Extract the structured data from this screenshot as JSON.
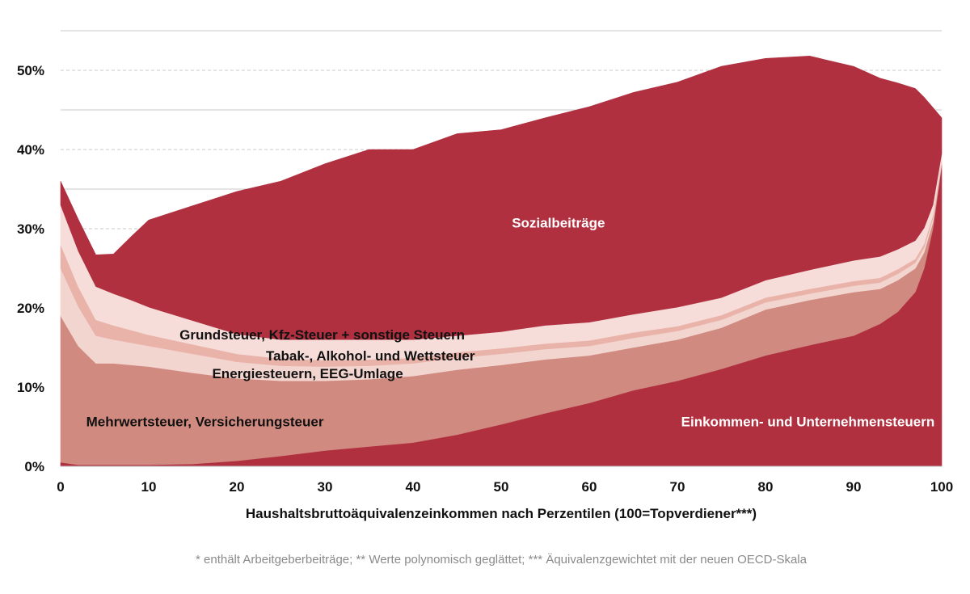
{
  "chart_data": {
    "type": "area",
    "stacked": true,
    "title": "",
    "xlabel": "Haushaltsbruttoäquivalenzeinkommen nach Perzentilen (100=Topverdiener***)",
    "ylabel": "",
    "xlim": [
      0,
      100
    ],
    "ylim": [
      0,
      50
    ],
    "x_ticks": [
      "0",
      "10",
      "20",
      "30",
      "40",
      "50",
      "60",
      "70",
      "80",
      "90",
      "100"
    ],
    "y_ticks": [
      "0%",
      "10%",
      "20%",
      "30%",
      "40%",
      "50%"
    ],
    "grid": true,
    "legend": "none (labels inside areas)",
    "footnote": "* enthält Arbeitgeberbeiträge; ** Werte polynomisch geglättet; *** Äquivalenzgewichtet mit der neuen OECD-Skala",
    "x": [
      0,
      2,
      4,
      6,
      8,
      10,
      15,
      20,
      25,
      30,
      35,
      40,
      45,
      50,
      55,
      60,
      65,
      70,
      75,
      80,
      85,
      90,
      93,
      95,
      97,
      98,
      99,
      100
    ],
    "series": [
      {
        "name": "Einkommen- und Unternehmensteuern",
        "color": "#B03040",
        "values": [
          0.5,
          0.2,
          0.2,
          0.2,
          0.2,
          0.2,
          0.3,
          0.7,
          1.3,
          2.0,
          2.5,
          3.0,
          4.0,
          5.3,
          6.7,
          8.0,
          9.6,
          10.8,
          12.3,
          14.0,
          15.3,
          16.5,
          18.0,
          19.5,
          22.0,
          25.0,
          30.0,
          38.0
        ]
      },
      {
        "name": "Mehrwertsteuer, Versicherungsteuer",
        "color": "#D08A80",
        "values": [
          18.5,
          15.0,
          12.8,
          12.8,
          12.6,
          12.4,
          11.5,
          10.4,
          9.5,
          8.8,
          8.5,
          8.4,
          8.2,
          7.5,
          6.8,
          6.0,
          5.4,
          5.2,
          5.2,
          5.8,
          5.7,
          5.5,
          4.4,
          4.0,
          3.0,
          2.0,
          0.8,
          0.3
        ]
      },
      {
        "name": "Energiesteuern, EEG-Umlage",
        "color": "#F3D5D0",
        "values": [
          6.0,
          5.0,
          3.5,
          3.0,
          2.8,
          2.6,
          2.4,
          2.1,
          1.9,
          1.8,
          1.7,
          1.6,
          1.5,
          1.4,
          1.3,
          1.2,
          1.2,
          1.1,
          1.0,
          0.9,
          0.8,
          0.8,
          0.8,
          0.8,
          0.7,
          0.6,
          0.5,
          0.3
        ]
      },
      {
        "name": "Tabak-, Alkohol- und Wettsteuer",
        "color": "#E9B3AA",
        "values": [
          3.0,
          2.5,
          2.0,
          1.8,
          1.6,
          1.4,
          1.2,
          1.0,
          0.9,
          0.8,
          0.8,
          0.7,
          0.7,
          0.7,
          0.7,
          0.7,
          0.7,
          0.6,
          0.6,
          0.6,
          0.6,
          0.6,
          0.6,
          0.6,
          0.5,
          0.5,
          0.4,
          0.2
        ]
      },
      {
        "name": "Grundsteuer, Kfz-Steuer + sonstige Steuern",
        "color": "#F6DDD9",
        "values": [
          5.0,
          4.5,
          4.2,
          4.0,
          3.8,
          3.5,
          3.0,
          2.5,
          2.4,
          2.6,
          2.5,
          2.3,
          2.1,
          2.1,
          2.3,
          2.3,
          2.3,
          2.4,
          2.2,
          2.2,
          2.4,
          2.6,
          2.7,
          2.5,
          2.3,
          2.0,
          1.3,
          0.7
        ]
      },
      {
        "name": "Sozialbeiträge",
        "color": "#B03040",
        "values": [
          3.0,
          4.0,
          4.0,
          5.0,
          8.0,
          11.0,
          14.5,
          18.0,
          20.0,
          22.2,
          24.0,
          24.0,
          25.5,
          25.5,
          26.2,
          27.2,
          28.0,
          28.4,
          29.2,
          28.0,
          27.0,
          24.5,
          22.5,
          21.0,
          19.2,
          16.5,
          12.3,
          4.5
        ]
      }
    ],
    "annotations": [
      {
        "text": "Sozialbeiträge",
        "x": 56.5,
        "y": 30.6,
        "color": "#ffffff",
        "anchor": "middle"
      },
      {
        "text": "Grundsteuer, Kfz-Steuer + sonstige Steuern",
        "x": 13.5,
        "y": 16.5,
        "color": "#111111",
        "anchor": "start"
      },
      {
        "text": "Tabak-, Alkohol- und Wettsteuer",
        "x": 23.3,
        "y": 13.8,
        "color": "#111111",
        "anchor": "start"
      },
      {
        "text": "Energiesteuern, EEG-Umlage",
        "x": 17.2,
        "y": 11.6,
        "color": "#111111",
        "anchor": "start"
      },
      {
        "text": "Mehrwertsteuer, Versicherungsteuer",
        "x": 2.9,
        "y": 5.5,
        "color": "#111111",
        "anchor": "start"
      },
      {
        "text": "Einkommen- und Unternehmensteuern",
        "x": 99.2,
        "y": 5.5,
        "color": "#ffffff",
        "anchor": "end"
      }
    ]
  }
}
